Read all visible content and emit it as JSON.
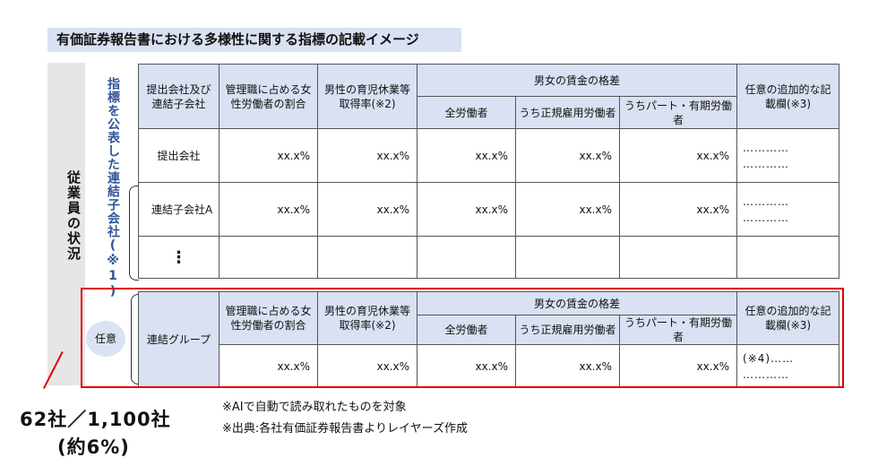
{
  "title": "有価証券報告書における多様性に関する指標の記載イメージ",
  "side_label": "従業員の状況",
  "vertical_label": "指標を公表した連結子会社(※1)",
  "optional_badge": "任意",
  "headers": {
    "company": "提出会社及び連結子会社",
    "women_mgmt": "管理職に占める女性労働者の割合",
    "male_leave": "男性の育児休業等取得率(※2)",
    "wage_gap": "男女の賃金の格差",
    "all_workers": "全労働者",
    "regular": "うち正規雇用労働者",
    "part_time": "うちパート・有期労働者",
    "optional": "任意の追加的な記載欄(※3)"
  },
  "rows": [
    {
      "label": "提出会社",
      "v1": "xx.x%",
      "v2": "xx.x%",
      "v3": "xx.x%",
      "v4": "xx.x%",
      "v5": "xx.x%",
      "note": "…………\n…………"
    },
    {
      "label": "連結子会社A",
      "v1": "xx.x%",
      "v2": "xx.x%",
      "v3": "xx.x%",
      "v4": "xx.x%",
      "v5": "xx.x%",
      "note": "…………\n…………"
    },
    {
      "label": "⋮"
    }
  ],
  "group_table": {
    "label": "連結グループ",
    "values": [
      "xx.x%",
      "xx.x%",
      "xx.x%",
      "xx.x%",
      "xx.x%"
    ],
    "note": "(※4)……\n…………"
  },
  "notes": [
    "※AIで自動で読み取れたものを対象",
    "※出典:各社有価証券報告書よりレイヤーズ作成"
  ],
  "count_text": "62社／1,100社",
  "percent_text": "(約6%)",
  "colors": {
    "header_bg": "#d9e1f2",
    "highlight": "#e00000",
    "label_blue": "#2f5597"
  }
}
